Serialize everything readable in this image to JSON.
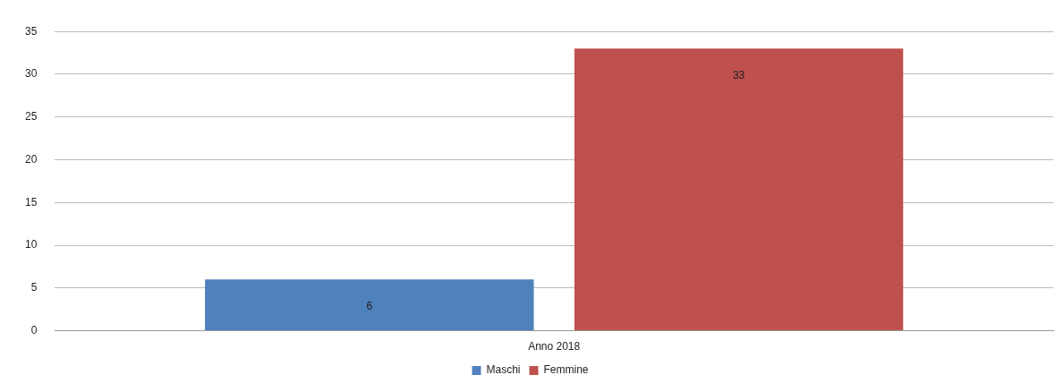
{
  "chart_data": {
    "type": "bar",
    "categories": [
      "Anno 2018"
    ],
    "series": [
      {
        "name": "Maschi",
        "color": "#4f81bd",
        "values": [
          6
        ]
      },
      {
        "name": "Femmine",
        "color": "#c0504d",
        "values": [
          33
        ]
      }
    ],
    "ylim": [
      0,
      35
    ],
    "yticks": [
      0,
      5,
      10,
      15,
      20,
      25,
      30,
      35
    ],
    "grid": "y",
    "legend": "bottom",
    "data_labels": true
  }
}
